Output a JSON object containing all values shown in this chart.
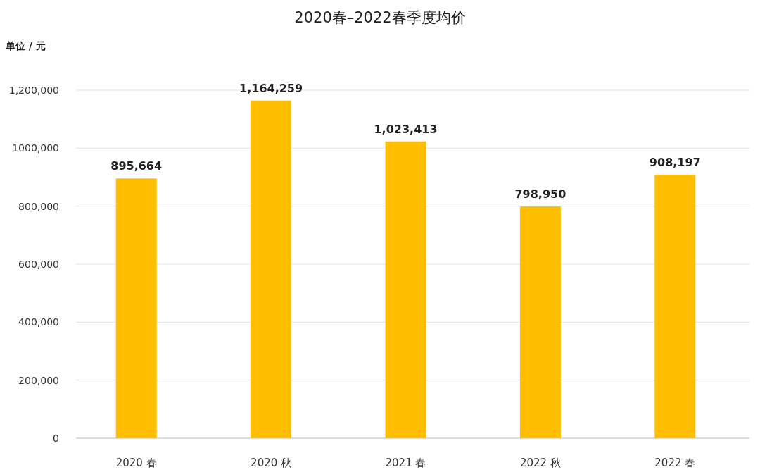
{
  "chart_data": {
    "type": "bar",
    "title": "2020春–2022春季度均价",
    "ylabel": "单位 / 元",
    "categories": [
      "2020 春",
      "2020 秋",
      "2021 春",
      "2022 秋",
      "2022 春"
    ],
    "values": [
      895664,
      1164259,
      1023413,
      798950,
      908197
    ],
    "color": "#ffbe00",
    "ylim": [
      0,
      1200000
    ],
    "yticks": [
      0,
      {
        "value": 200000,
        "label": "200,000"
      },
      {
        "value": 400000,
        "label": "400,000"
      },
      {
        "value": 600000,
        "label": "600,000"
      },
      {
        "value": 800000,
        "label": "800,000"
      },
      {
        "value": 1000000,
        "label": "1000,000"
      },
      {
        "value": 1200000,
        "label": "1,200,000"
      }
    ],
    "value_labels": [
      "895,664",
      "1,164,259",
      "1,023,413",
      "798,950",
      "908,197"
    ],
    "grid": "y"
  }
}
